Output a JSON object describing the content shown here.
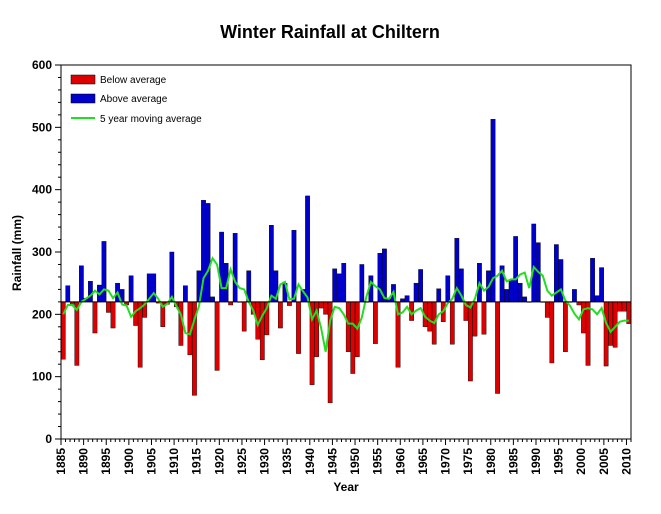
{
  "chart_data": {
    "type": "bar",
    "title": "Winter Rainfall at Chiltern",
    "xlabel": "Year",
    "ylabel": "Rainfall (mm)",
    "ylim": [
      0,
      600
    ],
    "yticks": [
      0,
      100,
      200,
      300,
      400,
      500,
      600
    ],
    "xlim": [
      1885,
      2011
    ],
    "xticks": [
      1885,
      1890,
      1895,
      1900,
      1905,
      1910,
      1915,
      1920,
      1925,
      1930,
      1935,
      1940,
      1945,
      1950,
      1955,
      1960,
      1965,
      1970,
      1975,
      1980,
      1985,
      1990,
      1995,
      2000,
      2005,
      2010
    ],
    "baseline": 220,
    "legend_position": "top-left",
    "legend": [
      {
        "label": "Below average",
        "color": "#dd0000"
      },
      {
        "label": "Above average",
        "color": "#0000cc"
      },
      {
        "label": "5 year moving average",
        "color": "#22dd22"
      }
    ],
    "colors": {
      "below": "#dd0000",
      "above": "#0000cc",
      "moving_average": "#22dd22"
    },
    "years": [
      1885,
      1886,
      1887,
      1888,
      1889,
      1890,
      1891,
      1892,
      1893,
      1894,
      1895,
      1896,
      1897,
      1898,
      1899,
      1900,
      1901,
      1902,
      1903,
      1904,
      1905,
      1906,
      1907,
      1908,
      1909,
      1910,
      1911,
      1912,
      1913,
      1914,
      1915,
      1916,
      1917,
      1918,
      1919,
      1920,
      1921,
      1922,
      1923,
      1924,
      1925,
      1926,
      1927,
      1928,
      1929,
      1930,
      1931,
      1932,
      1933,
      1934,
      1935,
      1936,
      1937,
      1938,
      1939,
      1940,
      1941,
      1942,
      1943,
      1944,
      1945,
      1946,
      1947,
      1948,
      1949,
      1950,
      1951,
      1952,
      1953,
      1954,
      1955,
      1956,
      1957,
      1958,
      1959,
      1960,
      1961,
      1962,
      1963,
      1964,
      1965,
      1966,
      1967,
      1968,
      1969,
      1970,
      1971,
      1972,
      1973,
      1974,
      1975,
      1976,
      1977,
      1978,
      1979,
      1980,
      1981,
      1982,
      1983,
      1984,
      1985,
      1986,
      1987,
      1988,
      1989,
      1990,
      1991,
      1992,
      1993,
      1994,
      1995,
      1996,
      1997,
      1998,
      1999,
      2000,
      2001,
      2002,
      2003,
      2004,
      2005,
      2006,
      2007,
      2008,
      2009,
      2010
    ],
    "rainfall": [
      128,
      246,
      216,
      118,
      278,
      226,
      253,
      170,
      247,
      317,
      203,
      178,
      250,
      240,
      215,
      262,
      182,
      115,
      195,
      265,
      265,
      218,
      180,
      216,
      300,
      212,
      150,
      246,
      135,
      70,
      270,
      383,
      378,
      228,
      110,
      332,
      282,
      215,
      330,
      220,
      173,
      270,
      200,
      160,
      127,
      167,
      343,
      270,
      178,
      250,
      214,
      335,
      137,
      240,
      390,
      87,
      132,
      210,
      200,
      58,
      273,
      265,
      282,
      140,
      105,
      132,
      280,
      220,
      262,
      153,
      298,
      305,
      225,
      248,
      115,
      225,
      230,
      190,
      250,
      272,
      180,
      173,
      152,
      241,
      188,
      262,
      152,
      322,
      273,
      190,
      93,
      165,
      282,
      168,
      270,
      513,
      73,
      278,
      240,
      255,
      325,
      250,
      228,
      220,
      345,
      315,
      220,
      195,
      122,
      312,
      288,
      140,
      220,
      240,
      215,
      170,
      118,
      290,
      230,
      275,
      117,
      150,
      147,
      205,
      205,
      185
    ],
    "moving_average": [
      200,
      215,
      215,
      207,
      220,
      225,
      230,
      238,
      232,
      240,
      238,
      226,
      235,
      216,
      214,
      196,
      205,
      210,
      216,
      225,
      234,
      225,
      212,
      217,
      228,
      213,
      200,
      170,
      168,
      192,
      213,
      258,
      270,
      290,
      280,
      242,
      242,
      272,
      252,
      242,
      240,
      220,
      206,
      183,
      198,
      210,
      230,
      225,
      248,
      252,
      224,
      225,
      248,
      237,
      227,
      192,
      206,
      178,
      140,
      190,
      212,
      210,
      200,
      185,
      185,
      177,
      195,
      228,
      252,
      245,
      240,
      226,
      225,
      236,
      200,
      203,
      212,
      200,
      206,
      210,
      196,
      190,
      186,
      200,
      205,
      218,
      225,
      242,
      230,
      215,
      211,
      225,
      250,
      238,
      244,
      258,
      262,
      270,
      253,
      256,
      256,
      264,
      267,
      242,
      276,
      268,
      262,
      238,
      230,
      235,
      240,
      222,
      214,
      201,
      192,
      208,
      210,
      208,
      200,
      210,
      186,
      172,
      180,
      188,
      190,
      190
    ]
  }
}
